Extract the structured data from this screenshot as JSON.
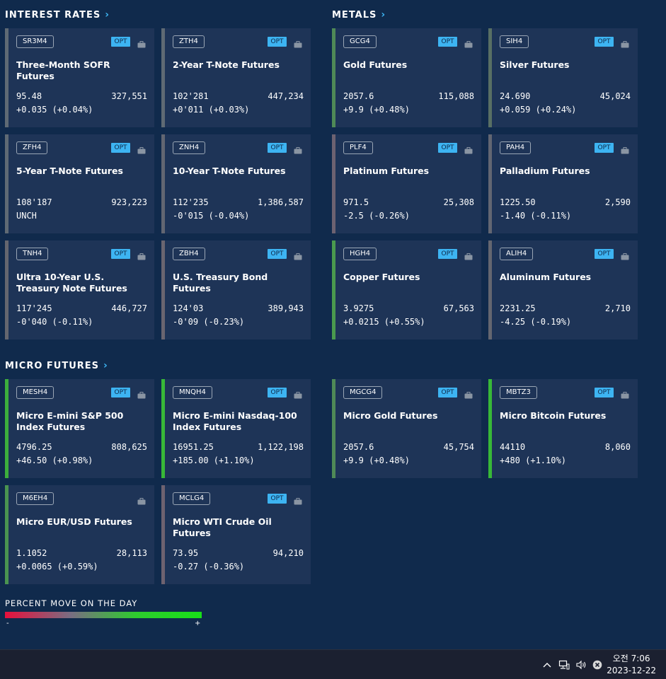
{
  "sections": {
    "interest_rates": "INTEREST RATES",
    "metals": "METALS",
    "micro_futures": "MICRO FUTURES"
  },
  "cards": [
    {
      "symbol": "SR3M4",
      "opt": "OPT",
      "name": "Three-Month SOFR Futures",
      "price": "95.48",
      "volume": "327,551",
      "change": "+0.035 (+0.04%)",
      "accent": "#5f6a74"
    },
    {
      "symbol": "ZTH4",
      "opt": "OPT",
      "name": "2-Year T-Note Futures",
      "price": "102'281",
      "volume": "447,234",
      "change": "+0'011 (+0.03%)",
      "accent": "#5f6a74"
    },
    {
      "symbol": "ZFH4",
      "opt": "OPT",
      "name": "5-Year T-Note Futures",
      "price": "108'187",
      "volume": "923,223",
      "change": "UNCH",
      "accent": "#5f6a74"
    },
    {
      "symbol": "ZNH4",
      "opt": "OPT",
      "name": "10-Year T-Note Futures",
      "price": "112'235",
      "volume": "1,386,587",
      "change": "-0'015 (-0.04%)",
      "accent": "#626672"
    },
    {
      "symbol": "TNH4",
      "opt": "OPT",
      "name": "Ultra 10-Year U.S. Treasury Note Futures",
      "price": "117'245",
      "volume": "446,727",
      "change": "-0'040 (-0.11%)",
      "accent": "#64666f"
    },
    {
      "symbol": "ZBH4",
      "opt": "OPT",
      "name": "U.S. Treasury Bond Futures",
      "price": "124'03",
      "volume": "389,943",
      "change": "-0'09 (-0.23%)",
      "accent": "#6a6570"
    },
    {
      "symbol": "GCG4",
      "opt": "OPT",
      "name": "Gold Futures",
      "price": "2057.6",
      "volume": "115,088",
      "change": "+9.9 (+0.48%)",
      "accent": "#4f8a57"
    },
    {
      "symbol": "SIH4",
      "opt": "OPT",
      "name": "Silver Futures",
      "price": "24.690",
      "volume": "45,024",
      "change": "+0.059 (+0.24%)",
      "accent": "#586f64"
    },
    {
      "symbol": "PLF4",
      "opt": "OPT",
      "name": "Platinum Futures",
      "price": "971.5",
      "volume": "25,308",
      "change": "-2.5 (-0.26%)",
      "accent": "#6d6271"
    },
    {
      "symbol": "PAH4",
      "opt": "OPT",
      "name": "Palladium Futures",
      "price": "1225.50",
      "volume": "2,590",
      "change": "-1.40 (-0.11%)",
      "accent": "#626672"
    },
    {
      "symbol": "HGH4",
      "opt": "OPT",
      "name": "Copper Futures",
      "price": "3.9275",
      "volume": "67,563",
      "change": "+0.0215 (+0.55%)",
      "accent": "#4a9a4e"
    },
    {
      "symbol": "ALIH4",
      "opt": "OPT",
      "name": "Aluminum Futures",
      "price": "2231.25",
      "volume": "2,710",
      "change": "-4.25 (-0.19%)",
      "accent": "#646670"
    },
    {
      "symbol": "MESH4",
      "opt": "OPT",
      "name": "Micro E-mini S&P 500 Index Futures",
      "price": "4796.25",
      "volume": "808,625",
      "change": "+46.50 (+0.98%)",
      "accent": "#3cae3c"
    },
    {
      "symbol": "MNQH4",
      "opt": "OPT",
      "name": "Micro E-mini Nasdaq-100 Index Futures",
      "price": "16951.25",
      "volume": "1,122,198",
      "change": "+185.00 (+1.10%)",
      "accent": "#38b838"
    },
    {
      "symbol": "MGCG4",
      "opt": "OPT",
      "name": "Micro Gold Futures",
      "price": "2057.6",
      "volume": "45,754",
      "change": "+9.9 (+0.48%)",
      "accent": "#4f8a57"
    },
    {
      "symbol": "MBTZ3",
      "opt": "OPT",
      "name": "Micro Bitcoin Futures",
      "price": "44110",
      "volume": "8,060",
      "change": "+480 (+1.10%)",
      "accent": "#38b838"
    },
    {
      "symbol": "M6EH4",
      "opt": "",
      "name": "Micro EUR/USD Futures",
      "price": "1.1052",
      "volume": "28,113",
      "change": "+0.0065 (+0.59%)",
      "accent": "#4a9450"
    },
    {
      "symbol": "MCLG4",
      "opt": "OPT",
      "name": "Micro WTI Crude Oil Futures",
      "price": "73.95",
      "volume": "94,210",
      "change": "-0.27 (-0.36%)",
      "accent": "#6e6270"
    }
  ],
  "legend": {
    "title": "PERCENT MOVE ON THE DAY",
    "minus": "-",
    "plus": "+"
  },
  "taskbar": {
    "time": "오전 7:06",
    "date": "2023-12-22"
  },
  "colors": {
    "background": "#102a4c",
    "card": "#1e3457",
    "accent_link": "#3db4f2"
  },
  "icons": [
    "chevron-right-icon",
    "briefcase-icon",
    "chevron-up-icon",
    "network-icon",
    "volume-icon",
    "close-circle-icon"
  ]
}
